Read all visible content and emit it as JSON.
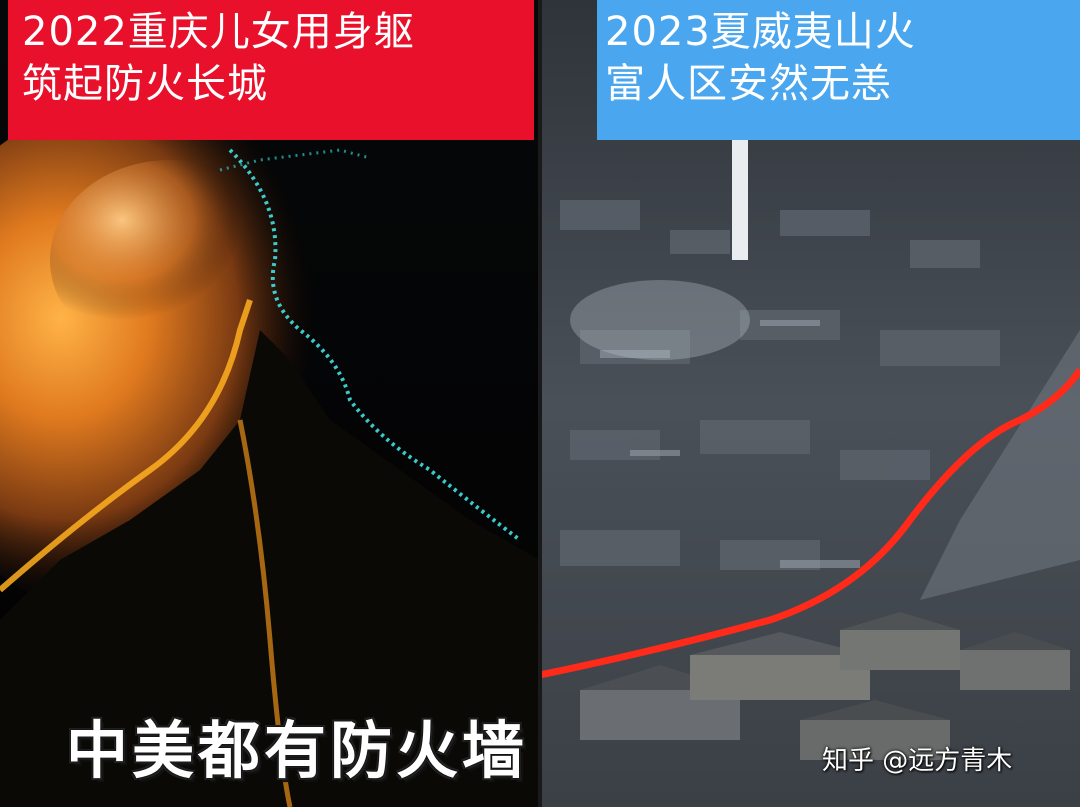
{
  "left_panel": {
    "caption_line1": "2022重庆儿女用身躯",
    "caption_line2": "筑起防火长城",
    "caption_bg": "#e8102a"
  },
  "right_panel": {
    "caption_line1": "2023夏威夷山火",
    "caption_line2": "富人区安然无恙",
    "caption_bg": "#4aa6ee",
    "boundary_line_color": "#ff2a1a"
  },
  "slogan": "中美都有防火墙",
  "watermark": "知乎 @远方青木"
}
